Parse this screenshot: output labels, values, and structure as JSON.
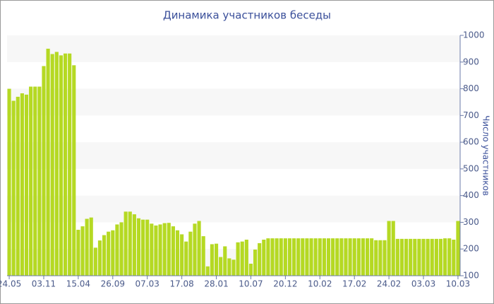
{
  "chart_data": {
    "type": "bar",
    "title": "Динамика участников беседы",
    "y_axis_label": "Число участников",
    "categories": [
      "24.05",
      null,
      null,
      null,
      null,
      null,
      null,
      null,
      "03.11",
      null,
      null,
      null,
      null,
      null,
      null,
      null,
      "15.04",
      null,
      null,
      null,
      null,
      null,
      null,
      null,
      "26.09",
      null,
      null,
      null,
      null,
      null,
      null,
      null,
      "07.03",
      null,
      null,
      null,
      null,
      null,
      null,
      null,
      "17.08",
      null,
      null,
      null,
      null,
      null,
      null,
      null,
      "28.01",
      null,
      null,
      null,
      null,
      null,
      null,
      null,
      "10.07",
      null,
      null,
      null,
      null,
      null,
      null,
      null,
      "20.12",
      null,
      null,
      null,
      null,
      null,
      null,
      null,
      "10.02",
      null,
      null,
      null,
      null,
      null,
      null,
      null,
      "17.02",
      null,
      null,
      null,
      null,
      null,
      null,
      null,
      "24.02",
      null,
      null,
      null,
      null,
      null,
      null,
      null,
      "03.03",
      null,
      null,
      null,
      null,
      null,
      null,
      null,
      "10.03"
    ],
    "values": [
      800,
      755,
      770,
      783,
      778,
      808,
      808,
      808,
      885,
      950,
      930,
      938,
      925,
      932,
      932,
      888,
      272,
      285,
      313,
      318,
      205,
      232,
      252,
      265,
      270,
      292,
      300,
      340,
      340,
      330,
      315,
      310,
      310,
      295,
      288,
      292,
      297,
      298,
      285,
      270,
      255,
      228,
      265,
      295,
      305,
      248,
      135,
      218,
      220,
      170,
      210,
      165,
      160,
      225,
      228,
      235,
      145,
      198,
      222,
      235,
      240,
      240,
      240,
      240,
      240,
      240,
      240,
      240,
      240,
      240,
      240,
      240,
      240,
      240,
      240,
      240,
      240,
      240,
      240,
      240,
      240,
      240,
      240,
      240,
      240,
      233,
      233,
      233,
      305,
      305,
      238,
      238,
      238,
      238,
      238,
      238,
      238,
      238,
      238,
      238,
      238,
      240,
      240,
      235,
      305
    ],
    "color": "#b5d923",
    "ylim": [
      100,
      1000
    ],
    "yticks": [
      100,
      200,
      300,
      400,
      500,
      600,
      700,
      800,
      900,
      1000
    ],
    "grid": true
  }
}
